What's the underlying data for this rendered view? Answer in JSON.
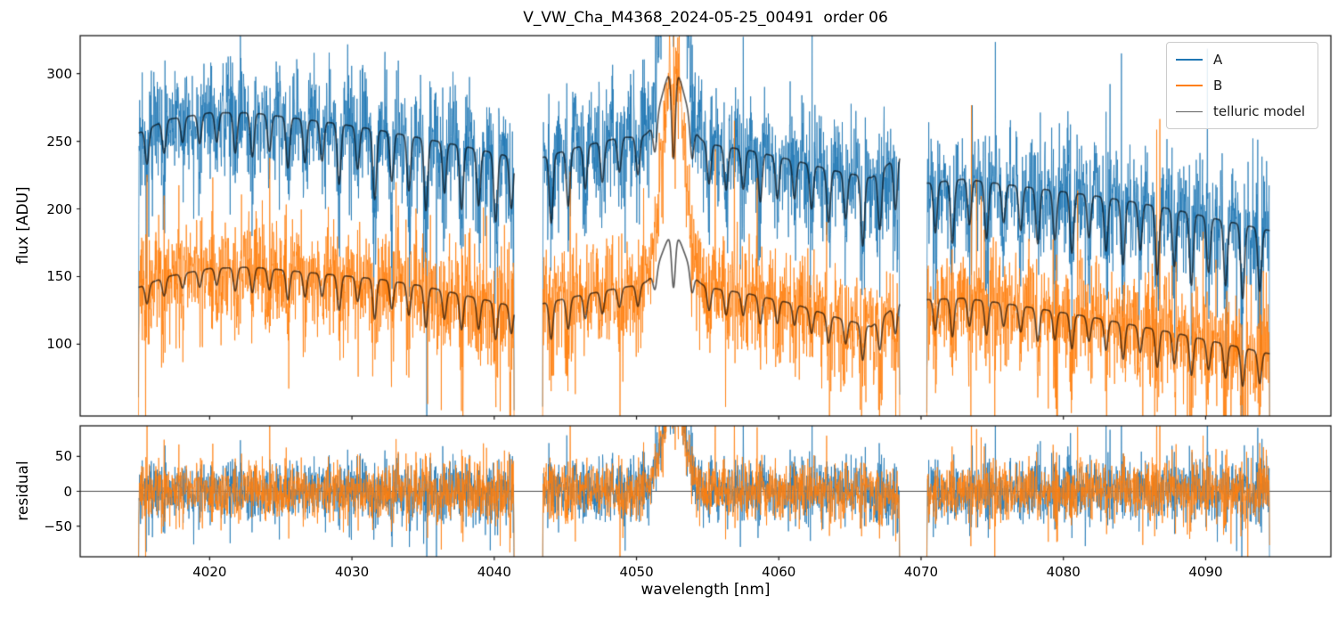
{
  "chart_data": {
    "type": "line",
    "title": "V_VW_Cha_M4368_2024-05-25_00491  order 06",
    "xlabel": "wavelength [nm]",
    "xlim": [
      4010.9,
      4098.8
    ],
    "xticks": {
      "values": [
        4020,
        4030,
        4040,
        4050,
        4060,
        4070,
        4080,
        4090
      ],
      "labels": [
        "4020",
        "4030",
        "4040",
        "4050",
        "4060",
        "4070",
        "4080",
        "4090"
      ]
    },
    "panels": [
      {
        "name": "flux",
        "ylabel": "flux [ADU]",
        "ylim": [
          47,
          328
        ],
        "yticks": {
          "values": [
            100,
            150,
            200,
            250,
            300
          ],
          "labels": [
            "100",
            "150",
            "200",
            "250",
            "300"
          ]
        }
      },
      {
        "name": "residual",
        "ylabel": "residual",
        "ylim": [
          -94,
          94
        ],
        "yticks": {
          "values": [
            -50,
            0,
            50
          ],
          "labels": [
            "−50",
            "0",
            "50"
          ]
        },
        "zero_line": true,
        "zero_line_color": "#4d4d4d"
      }
    ],
    "legend": {
      "location": "upper right",
      "entries": [
        {
          "label": "A",
          "color": "#1f77b4",
          "lw": 2.5
        },
        {
          "label": "B",
          "color": "#ff7f0e",
          "lw": 2.5
        },
        {
          "label": "telluric model",
          "color": "#616161",
          "lw": 1.6
        }
      ]
    },
    "segments": [
      [
        4015.0,
        4041.4
      ],
      [
        4043.4,
        4068.5
      ],
      [
        4070.4,
        4094.5
      ]
    ],
    "sample_step_nm": 0.02,
    "noise_seed": 20240525,
    "series": {
      "A": {
        "name": "A",
        "color": "#1f77b4",
        "alpha": 0.75,
        "noise_sigma": 20,
        "continuum": [
          [
            4015.0,
            256
          ],
          [
            4017,
            266
          ],
          [
            4020,
            271
          ],
          [
            4023,
            271
          ],
          [
            4026,
            267
          ],
          [
            4029,
            263
          ],
          [
            4032,
            258
          ],
          [
            4035,
            252
          ],
          [
            4038,
            246
          ],
          [
            4041.4,
            238
          ],
          [
            4043.4,
            238
          ],
          [
            4046,
            246
          ],
          [
            4049,
            253
          ],
          [
            4052.6,
            252
          ],
          [
            4055,
            248
          ],
          [
            4058,
            243
          ],
          [
            4061,
            236
          ],
          [
            4064,
            228
          ],
          [
            4066.5,
            223
          ],
          [
            4068.5,
            240
          ],
          [
            4070.4,
            219
          ],
          [
            4073,
            222
          ],
          [
            4076,
            218
          ],
          [
            4079,
            214
          ],
          [
            4082,
            210
          ],
          [
            4085,
            205
          ],
          [
            4088,
            199
          ],
          [
            4091,
            192
          ],
          [
            4094.5,
            184
          ]
        ]
      },
      "B": {
        "name": "B",
        "color": "#ff7f0e",
        "alpha": 0.75,
        "noise_sigma": 19,
        "continuum": [
          [
            4015.0,
            142
          ],
          [
            4017,
            150
          ],
          [
            4020,
            156
          ],
          [
            4023,
            157
          ],
          [
            4026,
            154
          ],
          [
            4029,
            151
          ],
          [
            4032,
            148
          ],
          [
            4035,
            143
          ],
          [
            4038,
            136
          ],
          [
            4041.4,
            128
          ],
          [
            4043.4,
            130
          ],
          [
            4046,
            136
          ],
          [
            4049,
            142
          ],
          [
            4052.6,
            147
          ],
          [
            4055,
            142
          ],
          [
            4058,
            137
          ],
          [
            4061,
            130
          ],
          [
            4064,
            120
          ],
          [
            4066.5,
            113
          ],
          [
            4068.5,
            131
          ],
          [
            4070.4,
            133
          ],
          [
            4073,
            134
          ],
          [
            4076,
            130
          ],
          [
            4079,
            125
          ],
          [
            4082,
            120
          ],
          [
            4085,
            114
          ],
          [
            4088,
            108
          ],
          [
            4091,
            101
          ],
          [
            4094.5,
            93
          ]
        ]
      }
    },
    "telluric_model": {
      "label": "telluric model",
      "color_rgba": [
        0,
        0,
        0,
        0.62
      ],
      "line_width": 1.7,
      "line_sigma_nm": 0.13,
      "lines": [
        [
          4015.6,
          0.1
        ],
        [
          4016.8,
          0.09
        ],
        [
          4018.1,
          0.07
        ],
        [
          4019.3,
          0.08
        ],
        [
          4020.5,
          0.08
        ],
        [
          4021.8,
          0.11
        ],
        [
          4023.0,
          0.12
        ],
        [
          4024.2,
          0.1
        ],
        [
          4025.5,
          0.14
        ],
        [
          4026.7,
          0.12
        ],
        [
          4027.9,
          0.11
        ],
        [
          4029.1,
          0.17
        ],
        [
          4030.4,
          0.12
        ],
        [
          4031.6,
          0.2
        ],
        [
          4032.8,
          0.14
        ],
        [
          4034.0,
          0.16
        ],
        [
          4035.2,
          0.21
        ],
        [
          4036.5,
          0.15
        ],
        [
          4037.7,
          0.19
        ],
        [
          4038.9,
          0.17
        ],
        [
          4040.1,
          0.21
        ],
        [
          4041.2,
          0.16
        ],
        [
          4044.0,
          0.21
        ],
        [
          4045.2,
          0.17
        ],
        [
          4046.4,
          0.13
        ],
        [
          4047.6,
          0.12
        ],
        [
          4048.8,
          0.1
        ],
        [
          4050.1,
          0.11
        ],
        [
          4051.3,
          0.09
        ],
        [
          4052.6,
          0.22
        ],
        [
          4053.9,
          0.1
        ],
        [
          4055.1,
          0.12
        ],
        [
          4056.3,
          0.13
        ],
        [
          4057.5,
          0.12
        ],
        [
          4058.7,
          0.15
        ],
        [
          4059.9,
          0.13
        ],
        [
          4061.1,
          0.12
        ],
        [
          4062.3,
          0.14
        ],
        [
          4063.5,
          0.17
        ],
        [
          4064.7,
          0.15
        ],
        [
          4065.9,
          0.23
        ],
        [
          4067.1,
          0.19
        ],
        [
          4068.2,
          0.16
        ],
        [
          4071.0,
          0.17
        ],
        [
          4072.2,
          0.21
        ],
        [
          4073.4,
          0.15
        ],
        [
          4074.6,
          0.19
        ],
        [
          4075.8,
          0.13
        ],
        [
          4077.0,
          0.15
        ],
        [
          4078.2,
          0.19
        ],
        [
          4079.4,
          0.17
        ],
        [
          4080.6,
          0.21
        ],
        [
          4081.8,
          0.15
        ],
        [
          4083.0,
          0.19
        ],
        [
          4084.2,
          0.23
        ],
        [
          4085.4,
          0.17
        ],
        [
          4086.6,
          0.25
        ],
        [
          4087.8,
          0.21
        ],
        [
          4089.0,
          0.27
        ],
        [
          4090.2,
          0.21
        ],
        [
          4091.4,
          0.25
        ],
        [
          4092.6,
          0.29
        ],
        [
          4093.8,
          0.25
        ]
      ]
    },
    "emission_feature": {
      "center": 4052.6,
      "sigma_nm": 0.8,
      "model_amp_A": 52,
      "model_amp_B": 35,
      "unmodeled_amp_A": 150,
      "unmodeled_amp_B": 130,
      "unmodeled_sigma_nm": 0.75
    },
    "noise": {
      "tail_prob": 0.04,
      "tail_scale": 2.3,
      "telluric_amplification": 2.5
    },
    "edge_taper": [
      0.25,
      0.7
    ]
  }
}
